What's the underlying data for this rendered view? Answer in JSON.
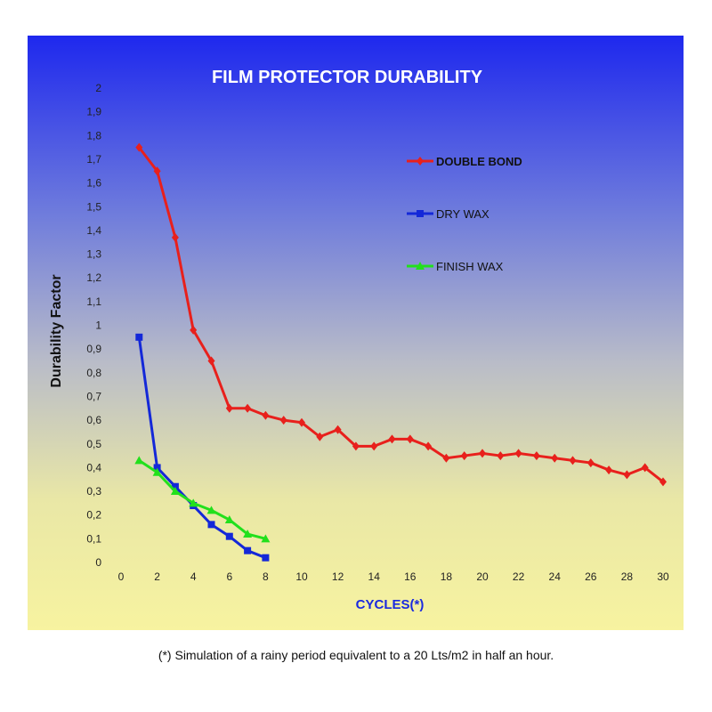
{
  "chart_data": {
    "type": "line",
    "title": "FILM PROTECTOR DURABILITY",
    "xlabel": "CYCLES(*)",
    "ylabel": "Durability Factor",
    "xlim": [
      0,
      30
    ],
    "ylim": [
      0,
      2
    ],
    "x_ticks": [
      "0",
      "2",
      "4",
      "6",
      "8",
      "10",
      "12",
      "14",
      "16",
      "18",
      "20",
      "22",
      "24",
      "26",
      "28",
      "30"
    ],
    "y_ticks": [
      "0",
      "0,1",
      "0,2",
      "0,3",
      "0,4",
      "0,5",
      "0,6",
      "0,7",
      "0,8",
      "0,9",
      "1",
      "1,1",
      "1,2",
      "1,3",
      "1,4",
      "1,5",
      "1,6",
      "1,7",
      "1,8",
      "1,9",
      "2"
    ],
    "grid": false,
    "legend_position": "top-right",
    "series": [
      {
        "name": "DOUBLE BOND",
        "color": "#e8201c",
        "marker": "diamond",
        "x": [
          1,
          2,
          3,
          4,
          5,
          6,
          7,
          8,
          9,
          10,
          11,
          12,
          13,
          14,
          15,
          16,
          17,
          18,
          19,
          20,
          21,
          22,
          23,
          24,
          25,
          26,
          27,
          28,
          29,
          30
        ],
        "y": [
          1.75,
          1.65,
          1.37,
          0.98,
          0.85,
          0.65,
          0.65,
          0.62,
          0.6,
          0.59,
          0.53,
          0.56,
          0.49,
          0.49,
          0.52,
          0.52,
          0.49,
          0.44,
          0.45,
          0.46,
          0.45,
          0.46,
          0.45,
          0.44,
          0.43,
          0.42,
          0.39,
          0.37,
          0.4,
          0.34
        ]
      },
      {
        "name": "DRY WAX",
        "color": "#1428d8",
        "marker": "square",
        "x": [
          1,
          2,
          3,
          4,
          5,
          6,
          7,
          8
        ],
        "y": [
          0.95,
          0.4,
          0.32,
          0.24,
          0.16,
          0.11,
          0.05,
          0.02
        ]
      },
      {
        "name": "FINISH WAX",
        "color": "#22e01c",
        "marker": "triangle",
        "x": [
          1,
          2,
          3,
          4,
          5,
          6,
          7,
          8
        ],
        "y": [
          0.43,
          0.38,
          0.3,
          0.25,
          0.22,
          0.18,
          0.12,
          0.1
        ]
      }
    ]
  },
  "footnote": "(*) Simulation of a rainy period equivalent to a 20 Lts/m2 in half an hour."
}
